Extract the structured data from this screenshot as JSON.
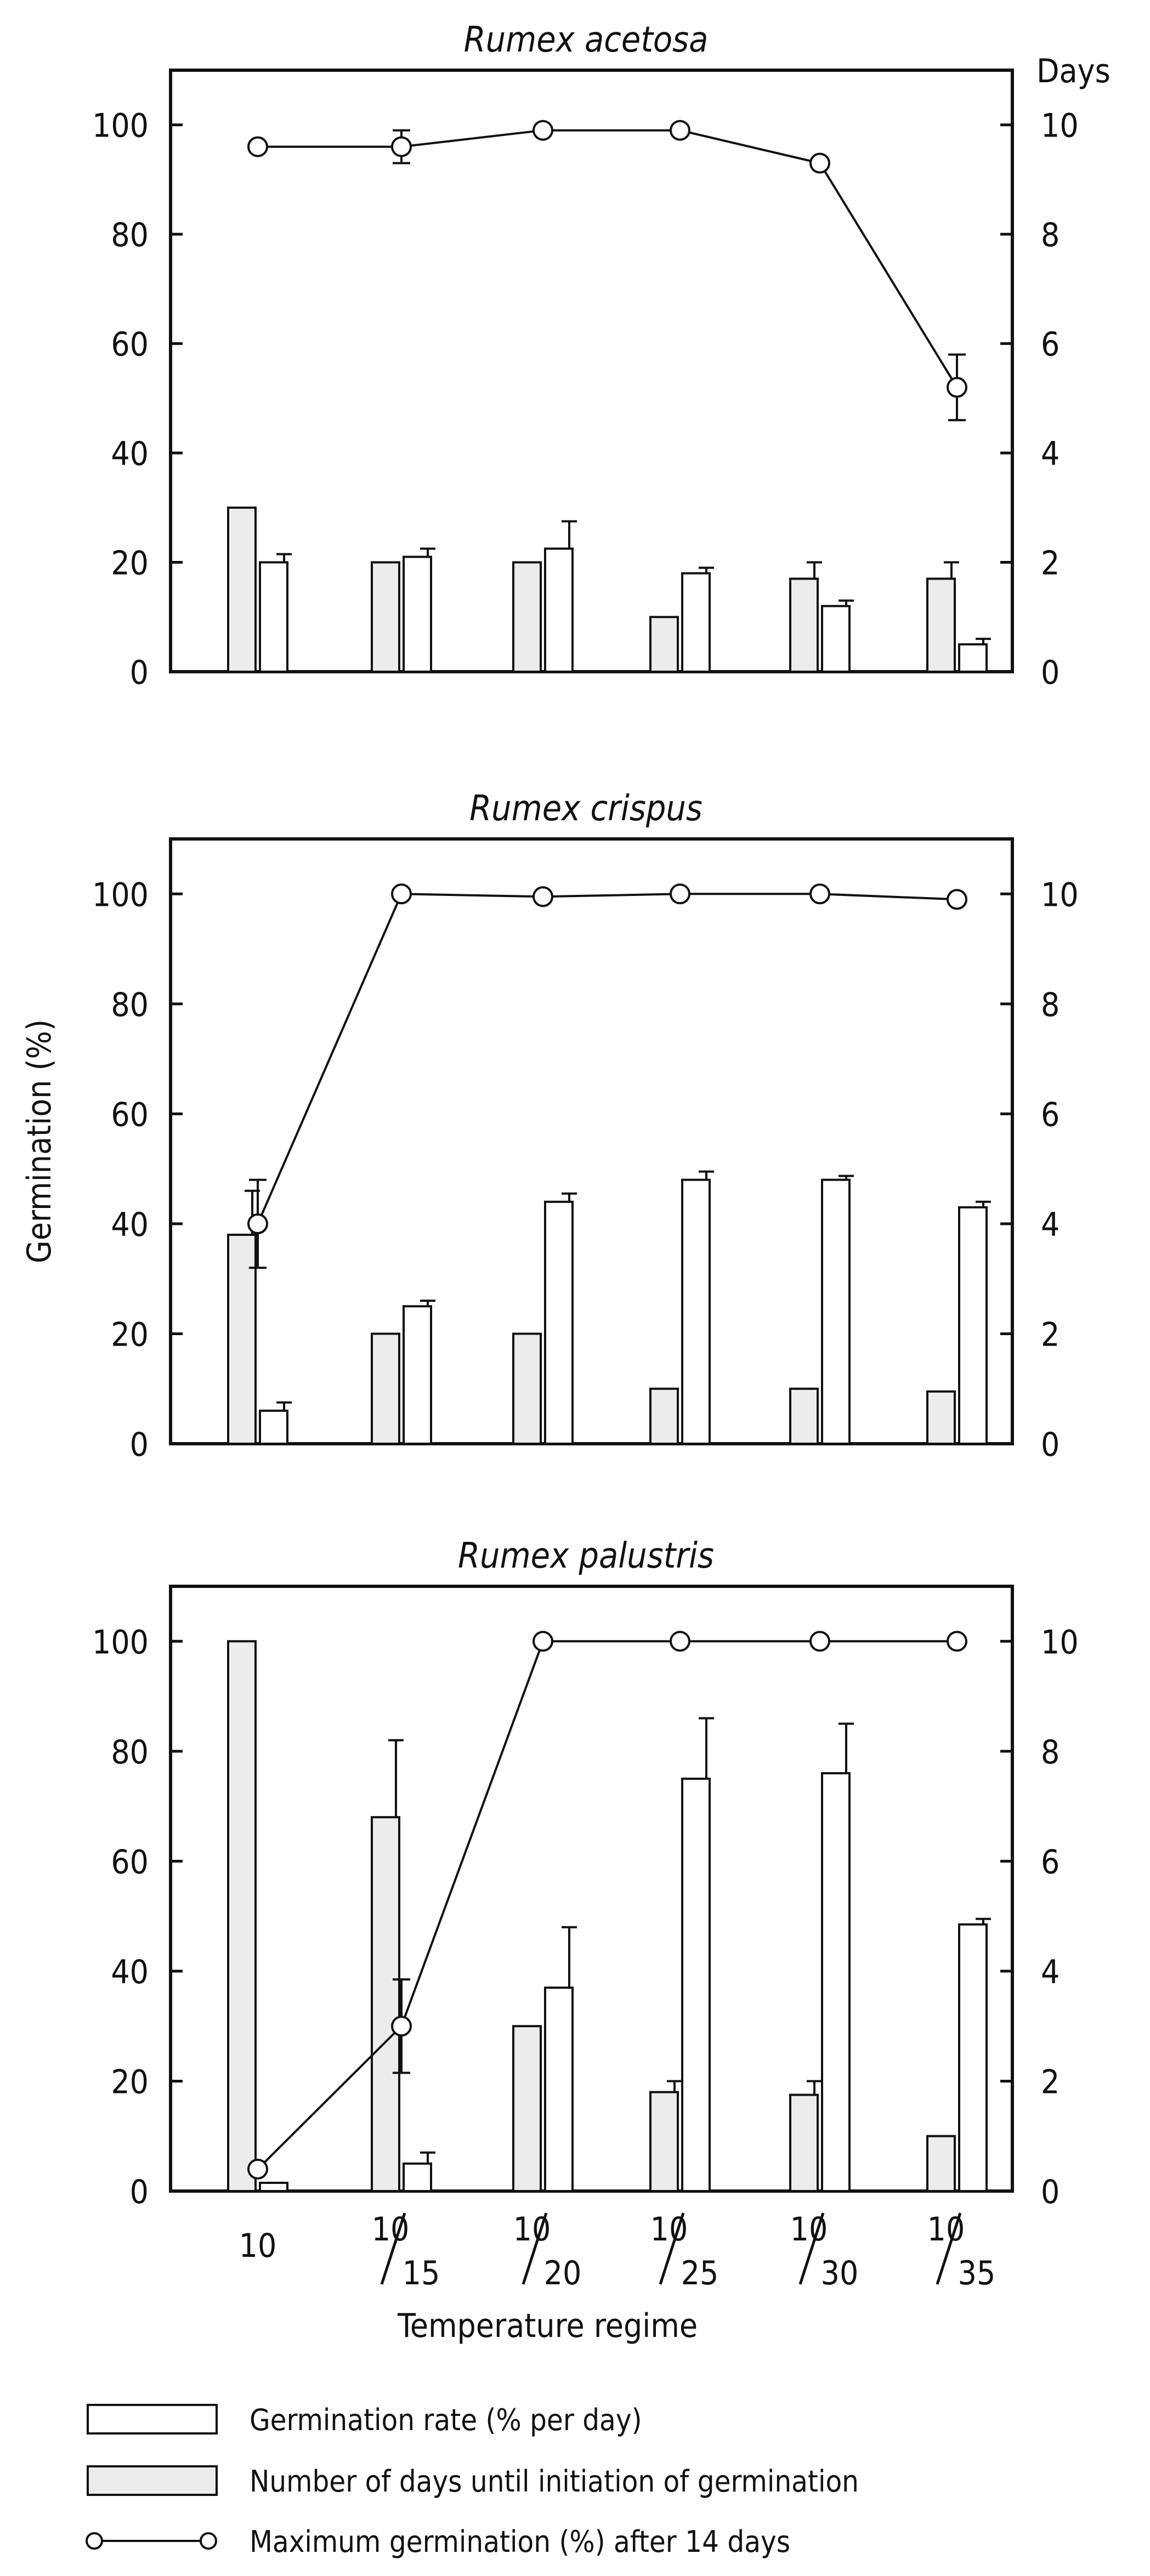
{
  "x_axis": {
    "label": "Temperature regime",
    "categories": [
      {
        "top": "10",
        "bottom": ""
      },
      {
        "top": "10",
        "bottom": "15"
      },
      {
        "top": "10",
        "bottom": "20"
      },
      {
        "top": "10",
        "bottom": "25"
      },
      {
        "top": "10",
        "bottom": "30"
      },
      {
        "top": "10",
        "bottom": "35"
      }
    ]
  },
  "left_axis": {
    "label": "Germination (%)",
    "ticks": [
      "0",
      "20",
      "40",
      "60",
      "80",
      "100"
    ]
  },
  "right_axis": {
    "label": "Days",
    "ticks": [
      "0",
      "2",
      "4",
      "6",
      "8",
      "10"
    ]
  },
  "legend": [
    {
      "key": "rate",
      "symbol": "open-bar",
      "text": "Germination rate (% per day)"
    },
    {
      "key": "days",
      "symbol": "dotted-bar",
      "text": "Number of days until initiation of germination"
    },
    {
      "key": "max",
      "symbol": "open-circle-line",
      "text": "Maximum germination (%) after 14 days"
    }
  ],
  "chart_data": [
    {
      "type": "bar",
      "title": "Rumex acetosa",
      "xlabel": "",
      "ylabel": "",
      "y2label": "Days",
      "categories": [
        "10",
        "10/15",
        "10/20",
        "10/25",
        "10/30",
        "10/35"
      ],
      "ylim": [
        0,
        110
      ],
      "y2lim": [
        0,
        11
      ],
      "series": [
        {
          "name": "Number of days until initiation of germination",
          "kind": "bar",
          "axis": "right",
          "values": [
            3,
            2,
            2,
            1,
            1.7,
            1.7
          ],
          "error": [
            0,
            0,
            0,
            0,
            0.3,
            0.3
          ]
        },
        {
          "name": "Germination rate (% per day)",
          "kind": "bar",
          "axis": "left",
          "values": [
            20,
            21,
            22.5,
            18,
            12,
            5
          ],
          "error": [
            1.5,
            1.5,
            5,
            1,
            1,
            1
          ]
        },
        {
          "name": "Maximum germination (%) after 14 days",
          "kind": "line",
          "axis": "left",
          "values": [
            96,
            96,
            99,
            99,
            93,
            52
          ],
          "error": [
            0,
            3,
            0,
            0,
            0,
            6
          ]
        }
      ]
    },
    {
      "type": "bar",
      "title": "Rumex crispus",
      "xlabel": "",
      "ylabel": "Germination (%)",
      "y2label": "",
      "categories": [
        "10",
        "10/15",
        "10/20",
        "10/25",
        "10/30",
        "10/35"
      ],
      "ylim": [
        0,
        110
      ],
      "y2lim": [
        0,
        11
      ],
      "series": [
        {
          "name": "Number of days until initiation of germination",
          "kind": "bar",
          "axis": "right",
          "values": [
            3.8,
            2,
            2,
            1,
            1,
            0.95
          ],
          "error": [
            0.8,
            0,
            0,
            0,
            0,
            0
          ]
        },
        {
          "name": "Germination rate (% per day)",
          "kind": "bar",
          "axis": "left",
          "values": [
            6,
            25,
            44,
            48,
            48,
            43
          ],
          "error": [
            1.5,
            1,
            1.5,
            1.5,
            0.7,
            1
          ]
        },
        {
          "name": "Maximum germination (%) after 14 days",
          "kind": "line",
          "axis": "left",
          "values": [
            40,
            100,
            99.5,
            100,
            100,
            99
          ],
          "error": [
            8,
            0,
            0,
            0,
            0,
            0
          ]
        }
      ]
    },
    {
      "type": "bar",
      "title": "Rumex palustris",
      "xlabel": "Temperature regime",
      "ylabel": "",
      "y2label": "",
      "categories": [
        "10",
        "10/15",
        "10/20",
        "10/25",
        "10/30",
        "10/35"
      ],
      "ylim": [
        0,
        110
      ],
      "y2lim": [
        0,
        11
      ],
      "series": [
        {
          "name": "Number of days until initiation of germination",
          "kind": "bar",
          "axis": "right",
          "values": [
            10,
            6.8,
            3,
            1.8,
            1.75,
            1
          ],
          "error": [
            0,
            1.4,
            0,
            0.2,
            0.25,
            0
          ]
        },
        {
          "name": "Germination rate (% per day)",
          "kind": "bar",
          "axis": "left",
          "values": [
            1.5,
            5,
            37,
            75,
            76,
            48.5
          ],
          "error": [
            0,
            2,
            11,
            11,
            9,
            1
          ]
        },
        {
          "name": "Maximum germination (%) after 14 days",
          "kind": "line",
          "axis": "left",
          "values": [
            4,
            30,
            100,
            100,
            100,
            100
          ],
          "error": [
            0,
            8.5,
            0,
            0,
            0,
            0
          ]
        }
      ]
    }
  ]
}
